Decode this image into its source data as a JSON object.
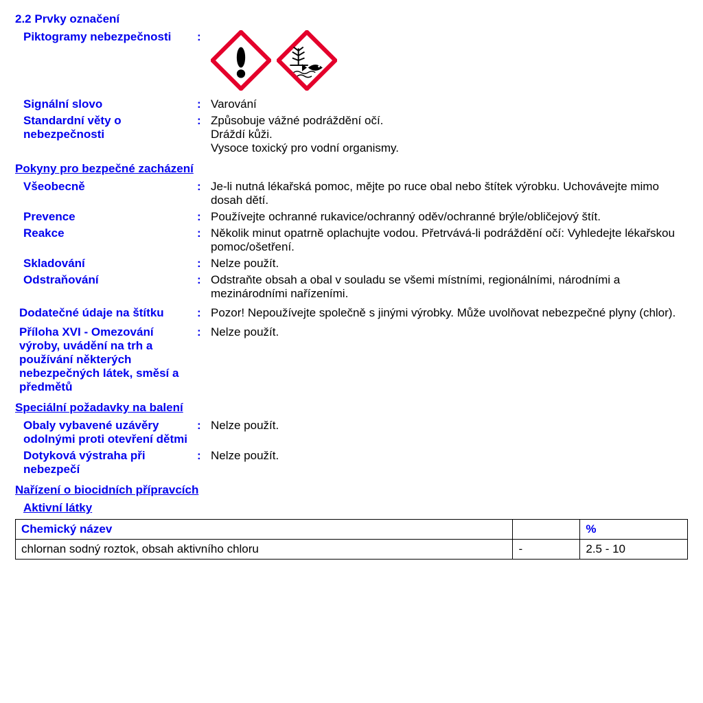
{
  "colors": {
    "label": "#0000ee",
    "text": "#000000",
    "hazard_border": "#e4002b",
    "hazard_fill": "#ffffff"
  },
  "section": {
    "title": "2.2 Prvky označení"
  },
  "pictograms": {
    "label": "Piktogramy nebezpečnosti",
    "icons": [
      "exclamation",
      "environment"
    ]
  },
  "signal_word": {
    "label": "Signální slovo",
    "value": "Varování"
  },
  "hazard_statements": {
    "label": "Standardní věty o nebezpečnosti",
    "lines": [
      "Způsobuje vážné podráždění očí.",
      "Dráždí kůži.",
      "Vysoce toxický pro vodní organismy."
    ]
  },
  "precaution_heading": "Pokyny pro bezpečné zacházení",
  "precautions": [
    {
      "label": "Všeobecně",
      "value": "Je-li nutná lékařská pomoc, mějte po ruce obal nebo štítek výrobku. Uchovávejte mimo dosah dětí."
    },
    {
      "label": "Prevence",
      "value": "Používejte ochranné rukavice/ochranný oděv/ochranné brýle/obličejový štít."
    },
    {
      "label": "Reakce",
      "value": "Několik minut opatrně oplachujte vodou. Přetrvává-li podráždění očí: Vyhledejte lékařskou pomoc/ošetření."
    },
    {
      "label": "Skladování",
      "value": "Nelze použít."
    },
    {
      "label": "Odstraňování",
      "value": "Odstraňte obsah a obal v souladu se všemi místními, regionálními, národními a mezinárodními nařízeními."
    }
  ],
  "supplemental": {
    "label": "Dodatečné údaje na štítku",
    "value": "Pozor! Nepoužívejte společně s jinými výrobky. Může uvolňovat nebezpečné plyny (chlor)."
  },
  "annex_xvi": {
    "label": "Příloha XVI - Omezování výroby, uvádění na trh a používání některých nebezpečných látek, směsí a předmětů",
    "value": "Nelze použít."
  },
  "packaging_heading": "Speciální požadavky na balení",
  "packaging": [
    {
      "label": "Obaly vybavené uzávěry odolnými proti otevření dětmi",
      "value": "Nelze použít."
    },
    {
      "label": "Dotyková výstraha při nebezpečí",
      "value": "Nelze použít."
    }
  ],
  "biocide_heading": "Nařízení o biocidních přípravcích",
  "active_substances_heading": "Aktivní látky",
  "table": {
    "columns": [
      "Chemický název",
      "",
      "%"
    ],
    "rows": [
      [
        "chlornan sodný roztok, obsah aktivního chloru",
        "-",
        "2.5 - 10"
      ]
    ]
  }
}
